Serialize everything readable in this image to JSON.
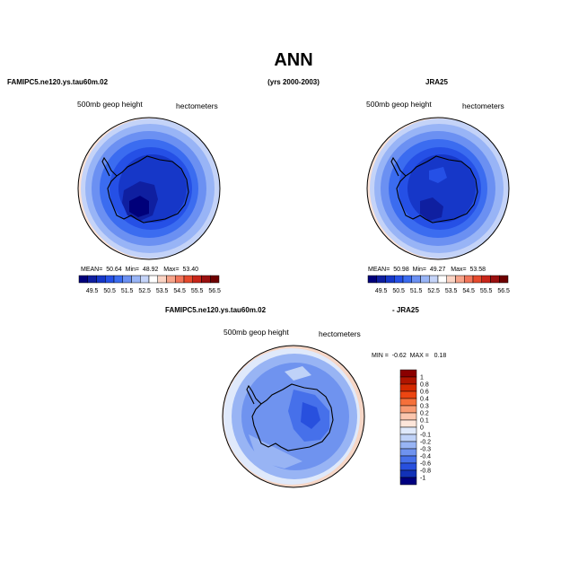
{
  "figure": {
    "title": "ANN",
    "header_left": "FAMIPC5.ne120.ys.tau60m.02",
    "header_center": "(yrs 2000-2003)",
    "header_right": "JRA25",
    "diff_header_left": "FAMIPC5.ne120.ys.tau60m.02",
    "diff_header_right": "- JRA25"
  },
  "chart_data": [
    {
      "type": "heatmap",
      "projection": "polar-stereographic-south",
      "title": "FAMIPC5.ne120.ys.tau60m.02",
      "variable_label": "500mb  geop  height",
      "units": "hectometers",
      "stats": {
        "mean_label": "MEAN=",
        "mean": "50.64",
        "min_label": "Min=",
        "min": "48.92",
        "max_label": "Max=",
        "max": "53.40"
      },
      "colorbar": {
        "orientation": "horizontal",
        "levels": [
          "49.5",
          "50.5",
          "51.5",
          "52.5",
          "53.5",
          "54.5",
          "55.5",
          "56.5"
        ],
        "colors": [
          "#00007a",
          "#0f1fa0",
          "#1637c8",
          "#2550e6",
          "#3b6cf0",
          "#6b90f2",
          "#98b4f6",
          "#c4d3f8",
          "#ffffff",
          "#fbd4c4",
          "#f7a48a",
          "#f2755a",
          "#e64a2d",
          "#c8261a",
          "#9a1010",
          "#6e0000"
        ]
      }
    },
    {
      "type": "heatmap",
      "projection": "polar-stereographic-south",
      "title": "JRA25",
      "variable_label": "500mb  geop  height",
      "units": "hectometers",
      "stats": {
        "mean_label": "MEAN=",
        "mean": "50.98",
        "min_label": "Min=",
        "min": "49.27",
        "max_label": "Max=",
        "max": "53.58"
      },
      "colorbar": {
        "orientation": "horizontal",
        "levels": [
          "49.5",
          "50.5",
          "51.5",
          "52.5",
          "53.5",
          "54.5",
          "55.5",
          "56.5"
        ],
        "colors": [
          "#00007a",
          "#0f1fa0",
          "#1637c8",
          "#2550e6",
          "#3b6cf0",
          "#6b90f2",
          "#98b4f6",
          "#c4d3f8",
          "#ffffff",
          "#fbd4c4",
          "#f7a48a",
          "#f2755a",
          "#e64a2d",
          "#c8261a",
          "#9a1010",
          "#6e0000"
        ]
      }
    },
    {
      "type": "heatmap",
      "projection": "polar-stereographic-south",
      "title": "FAMIPC5.ne120.ys.tau60m.02 - JRA25",
      "variable_label": "500mb  geop  height",
      "units": "hectometers",
      "stats": {
        "min_label": "MIN =",
        "min": "-0.62",
        "max_label": "MAX =",
        "max": "0.18"
      },
      "colorbar": {
        "orientation": "vertical",
        "levels": [
          "1",
          "0.8",
          "0.6",
          "0.4",
          "0.3",
          "0.2",
          "0.1",
          "0",
          "-0.1",
          "-0.2",
          "-0.3",
          "-0.4",
          "-0.6",
          "-0.8",
          "-1"
        ],
        "colors": [
          "#8b0000",
          "#b01500",
          "#d42a00",
          "#ec4612",
          "#f5703a",
          "#f89a72",
          "#fbc6ae",
          "#fde6da",
          "#dfe9fb",
          "#bfd2f8",
          "#98b4f4",
          "#6f93ef",
          "#4670ea",
          "#2850de",
          "#1232b8",
          "#000080"
        ]
      }
    }
  ]
}
